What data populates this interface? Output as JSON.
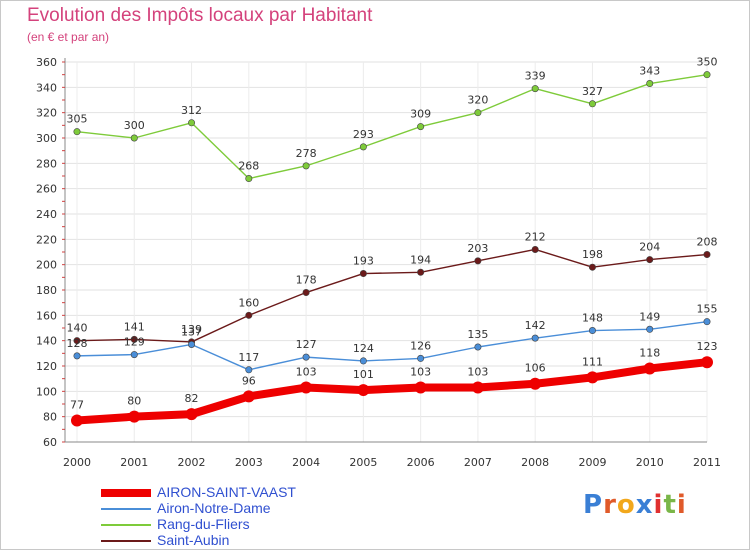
{
  "title": "Evolution des Impôts locaux par Habitant",
  "subtitle": "(en € et par an)",
  "brand": {
    "letters": [
      "P",
      "r",
      "o",
      "x",
      "i",
      "t",
      "i"
    ],
    "colors": [
      "#3a7fd5",
      "#e05a2a",
      "#f2a81c",
      "#3a7fd5",
      "#e03030",
      "#7ab648",
      "#e05a2a"
    ]
  },
  "chart_data": {
    "type": "line",
    "title": "Evolution des Impôts locaux par Habitant",
    "subtitle": "(en € et par an)",
    "x": [
      "2000",
      "2001",
      "2002",
      "2003",
      "2004",
      "2005",
      "2006",
      "2007",
      "2008",
      "2009",
      "2010",
      "2011"
    ],
    "ylim": [
      60,
      360
    ],
    "yticks": [
      60,
      80,
      100,
      120,
      140,
      160,
      180,
      200,
      220,
      240,
      260,
      280,
      300,
      320,
      340,
      360
    ],
    "grid": true,
    "legend_position": "bottom-left",
    "series": [
      {
        "name": "Rang-du-Fliers",
        "color": "#7ecb3a",
        "values": [
          305,
          300,
          312,
          268,
          278,
          293,
          309,
          320,
          339,
          327,
          343,
          350
        ]
      },
      {
        "name": "Saint-Aubin",
        "color": "#6b1a1a",
        "values": [
          140,
          141,
          139,
          160,
          178,
          193,
          194,
          203,
          212,
          198,
          204,
          208
        ]
      },
      {
        "name": "Airon-Notre-Dame",
        "color": "#4a8ed8",
        "values": [
          128,
          129,
          137,
          117,
          127,
          124,
          126,
          135,
          142,
          148,
          149,
          155
        ]
      },
      {
        "name": "AIRON-SAINT-VAAST",
        "color": "#ee0000",
        "values": [
          77,
          80,
          82,
          96,
          103,
          101,
          103,
          103,
          106,
          111,
          118,
          123
        ]
      }
    ]
  },
  "legend": [
    {
      "name": "AIRON-SAINT-VAAST",
      "color": "#ee0000"
    },
    {
      "name": "Airon-Notre-Dame",
      "color": "#4a8ed8"
    },
    {
      "name": "Rang-du-Fliers",
      "color": "#7ecb3a"
    },
    {
      "name": "Saint-Aubin",
      "color": "#6b1a1a"
    }
  ]
}
